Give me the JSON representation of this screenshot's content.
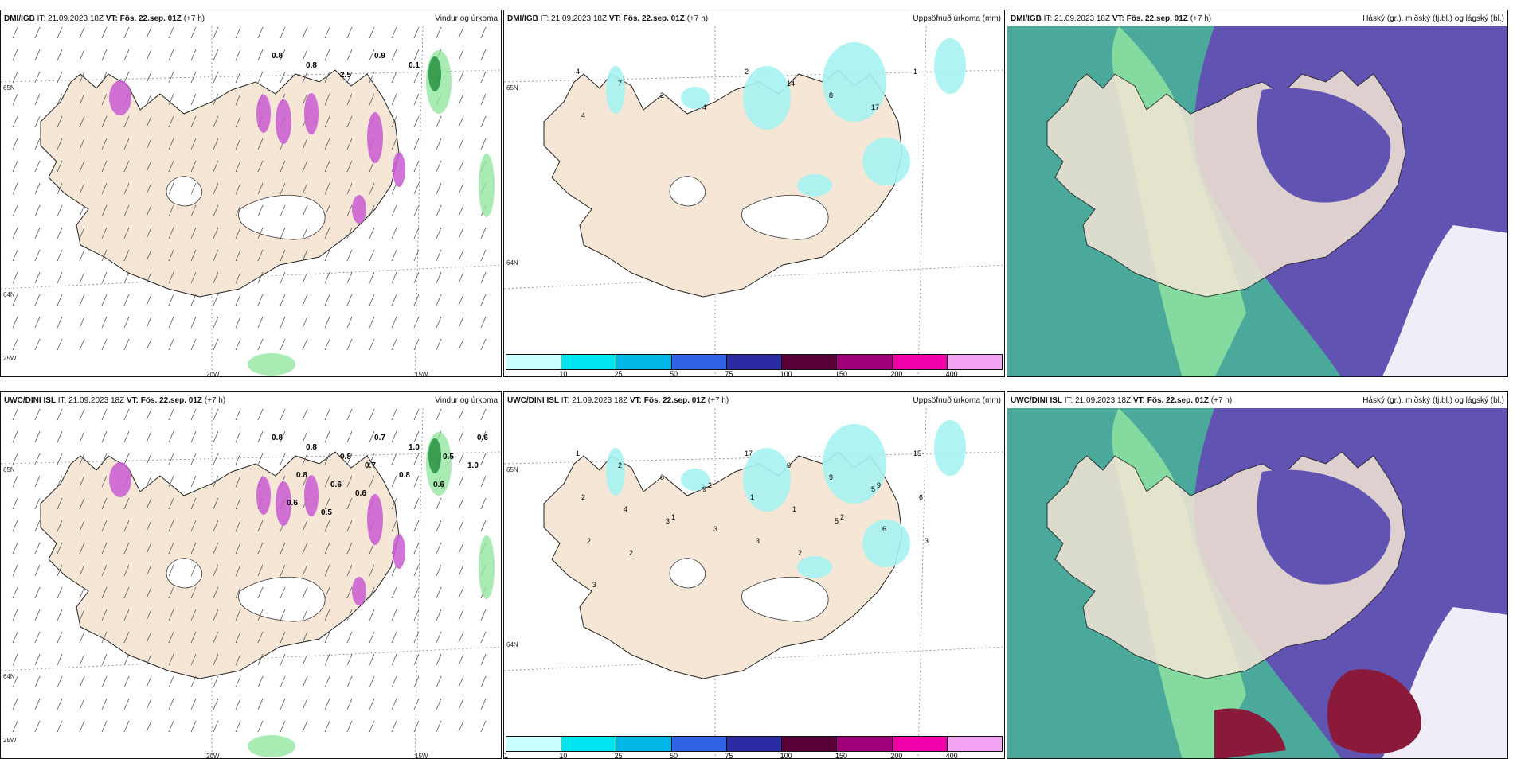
{
  "panels": [
    {
      "model": "DMI/IGB",
      "it": "IT: 21.09.2023 18Z",
      "vt_label": "VT:",
      "vt": "Fös. 22.sep. 01Z",
      "lead": "(+7 h)",
      "title": "Vindur og úrkoma",
      "type": "wind",
      "values": [
        "0.8",
        "0.8",
        "2.5",
        "0.9",
        "0.1"
      ],
      "axes": {
        "lon1": "20W",
        "lon2": "15W",
        "lat1": "65N",
        "lat2": "64N",
        "lat3": "25W"
      }
    },
    {
      "model": "DMI/IGB",
      "it": "IT: 21.09.2023 18Z",
      "vt_label": "VT:",
      "vt": "Fös. 22.sep. 01Z",
      "lead": "(+7 h)",
      "title": "Uppsöfnuð úrkoma (mm)",
      "type": "precip",
      "values": [
        "4",
        "7",
        "2",
        "4",
        "2",
        "14",
        "8",
        "17",
        "1",
        "4"
      ],
      "axes": {
        "lat1": "65N",
        "lat2": "64N"
      }
    },
    {
      "model": "DMI/IGB",
      "it": "IT: 21.09.2023 18Z",
      "vt_label": "VT:",
      "vt": "Fös. 22.sep. 01Z",
      "lead": "(+7 h)",
      "title": "Háský (gr.), miðský (fj.bl.) og lágský (bl.)",
      "type": "cloud"
    },
    {
      "model": "UWC/DINI ISL",
      "it": "IT: 21.09.2023 18Z",
      "vt_label": "VT:",
      "vt": "Fös. 22.sep. 01Z",
      "lead": "(+7 h)",
      "title": "Vindur og úrkoma",
      "type": "wind",
      "values": [
        "0.8",
        "0.8",
        "0.8",
        "0.7",
        "1.0",
        "0.5",
        "0.6",
        "0.8",
        "0.6",
        "0.7",
        "0.8",
        "0.6",
        "1.0",
        "0.6",
        "0.5",
        "0.6"
      ],
      "axes": {
        "lon1": "20W",
        "lon2": "15W",
        "lat1": "65N",
        "lat2": "64N",
        "lat3": "25W"
      }
    },
    {
      "model": "UWC/DINI ISL",
      "it": "IT: 21.09.2023 18Z",
      "vt_label": "VT:",
      "vt": "Fös. 22.sep. 01Z",
      "lead": "(+7 h)",
      "title": "Uppsöfnuð úrkoma (mm)",
      "type": "precip",
      "values": [
        "1",
        "2",
        "6",
        "9",
        "17",
        "6",
        "9",
        "5",
        "15",
        "2",
        "4",
        "3",
        "2",
        "1",
        "1",
        "5",
        "9",
        "6",
        "2",
        "2",
        "1",
        "3",
        "3",
        "2",
        "2",
        "6",
        "3",
        "3"
      ],
      "axes": {
        "lat1": "65N",
        "lat2": "64N"
      }
    },
    {
      "model": "UWC/DINI ISL",
      "it": "IT: 21.09.2023 18Z",
      "vt_label": "VT:",
      "vt": "Fös. 22.sep. 01Z",
      "lead": "(+7 h)",
      "title": "Háský (gr.), miðský (fj.bl.) og lágský (bl.)",
      "type": "cloud"
    }
  ],
  "colorbar": {
    "colors": [
      "#c8ffff",
      "#00e5f0",
      "#00b7e6",
      "#2e63e8",
      "#2a2aa3",
      "#5a0038",
      "#a0007a",
      "#f000a8",
      "#f3a5f3"
    ],
    "labels": [
      "1",
      "10",
      "25",
      "50",
      "75",
      "100",
      "150",
      "200",
      "400"
    ]
  },
  "palette": {
    "land": "#f5e6d6",
    "wind_precip": "#c95bd1",
    "light_green": "#92e6a0",
    "dark_green": "#1e8a3a",
    "cloud_purple": "#6153b2",
    "cloud_blue": "#2f47c7",
    "cloud_teal": "#4aa99b",
    "cloud_red": "#8b1a3a",
    "precip_cyan": "#a6f2f2"
  }
}
